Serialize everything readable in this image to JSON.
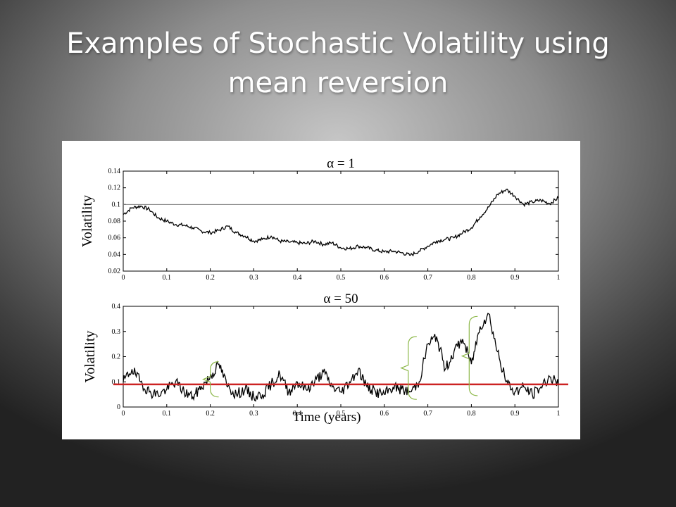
{
  "slide": {
    "title_line1": "Examples of Stochastic Volatility using",
    "title_line2": "mean reversion"
  },
  "colors": {
    "text": "#ffffff",
    "series": "#000000",
    "mean_line_top": "#7f7f7f",
    "mean_line_bottom": "#cc2222",
    "brackets": "#8db84a"
  },
  "chart_data": [
    {
      "type": "line",
      "title": "α = 1",
      "xlabel": "",
      "ylabel": "Volatility",
      "xlim": [
        0,
        1
      ],
      "ylim": [
        0.02,
        0.14
      ],
      "xticks": [
        "0",
        "0.1",
        "0.2",
        "0.3",
        "0.4",
        "0.5",
        "0.6",
        "0.7",
        "0.8",
        "0.9",
        "1"
      ],
      "yticks": [
        "0.02",
        "0.04",
        "0.06",
        "0.08",
        "0.1",
        "0.12",
        "0.14"
      ],
      "mean_level": 0.1,
      "series": [
        {
          "x": [
            0,
            0.02,
            0.04,
            0.06,
            0.08,
            0.1,
            0.12,
            0.14,
            0.16,
            0.18,
            0.2,
            0.22,
            0.24,
            0.26,
            0.28,
            0.3,
            0.32,
            0.34,
            0.36,
            0.38,
            0.4,
            0.42,
            0.44,
            0.46,
            0.48,
            0.5,
            0.52,
            0.54,
            0.56,
            0.58,
            0.6,
            0.62,
            0.64,
            0.66,
            0.68,
            0.7,
            0.72,
            0.74,
            0.76,
            0.78,
            0.8,
            0.82,
            0.84,
            0.86,
            0.88,
            0.9,
            0.92,
            0.94,
            0.96,
            0.98,
            1
          ],
          "values": [
            0.088,
            0.096,
            0.098,
            0.094,
            0.084,
            0.08,
            0.076,
            0.075,
            0.072,
            0.068,
            0.066,
            0.069,
            0.074,
            0.066,
            0.062,
            0.056,
            0.058,
            0.062,
            0.056,
            0.055,
            0.054,
            0.053,
            0.056,
            0.052,
            0.054,
            0.048,
            0.047,
            0.05,
            0.048,
            0.045,
            0.043,
            0.044,
            0.042,
            0.039,
            0.044,
            0.05,
            0.056,
            0.058,
            0.06,
            0.066,
            0.072,
            0.085,
            0.097,
            0.112,
            0.118,
            0.11,
            0.1,
            0.103,
            0.105,
            0.101,
            0.108
          ]
        }
      ]
    },
    {
      "type": "line",
      "title": "α = 50",
      "xlabel": "Time (years)",
      "ylabel": "Volatility",
      "xlim": [
        0,
        1
      ],
      "ylim": [
        0,
        0.4
      ],
      "xticks": [
        "0",
        "0.1",
        "0.2",
        "0.3",
        "0.4",
        "0.5",
        "0.6",
        "0.7",
        "0.8",
        "0.9",
        "1"
      ],
      "yticks": [
        "0",
        "0.1",
        "0.2",
        "0.3",
        "0.4"
      ],
      "mean_level": 0.09,
      "series": [
        {
          "x": [
            0,
            0.02,
            0.04,
            0.06,
            0.08,
            0.1,
            0.12,
            0.14,
            0.16,
            0.18,
            0.2,
            0.22,
            0.24,
            0.26,
            0.28,
            0.3,
            0.32,
            0.34,
            0.36,
            0.38,
            0.4,
            0.42,
            0.44,
            0.46,
            0.48,
            0.5,
            0.52,
            0.54,
            0.56,
            0.58,
            0.6,
            0.62,
            0.64,
            0.66,
            0.68,
            0.7,
            0.72,
            0.74,
            0.76,
            0.78,
            0.8,
            0.82,
            0.84,
            0.86,
            0.88,
            0.9,
            0.92,
            0.94,
            0.96,
            0.98,
            1
          ],
          "values": [
            0.1,
            0.15,
            0.1,
            0.06,
            0.05,
            0.07,
            0.1,
            0.06,
            0.04,
            0.08,
            0.12,
            0.17,
            0.08,
            0.05,
            0.07,
            0.04,
            0.05,
            0.09,
            0.13,
            0.06,
            0.1,
            0.07,
            0.1,
            0.14,
            0.08,
            0.06,
            0.1,
            0.15,
            0.08,
            0.06,
            0.05,
            0.08,
            0.07,
            0.06,
            0.1,
            0.25,
            0.28,
            0.15,
            0.22,
            0.27,
            0.17,
            0.32,
            0.37,
            0.22,
            0.1,
            0.06,
            0.08,
            0.05,
            0.08,
            0.12,
            0.09
          ]
        }
      ]
    }
  ]
}
